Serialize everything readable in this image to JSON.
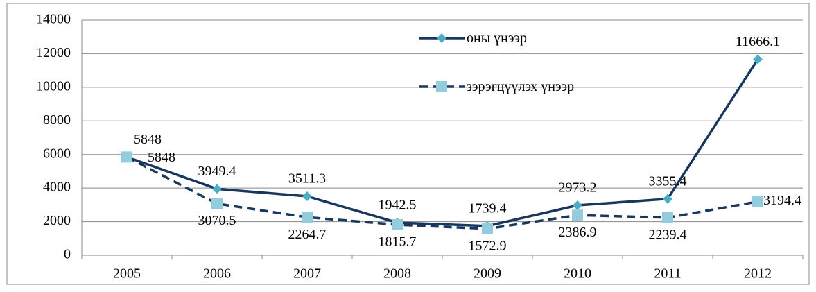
{
  "chart_data": {
    "type": "line",
    "categories": [
      "2005",
      "2006",
      "2007",
      "2008",
      "2009",
      "2010",
      "2011",
      "2012"
    ],
    "series": [
      {
        "name": "оны үнээр",
        "color": "#17375e",
        "marker_color": "#4bacc6",
        "marker": "diamond",
        "dash": false,
        "values": [
          5848,
          3949.4,
          3511.3,
          1942.5,
          1739.4,
          2973.2,
          3355.4,
          11666.1
        ]
      },
      {
        "name": "зэрэгцүүлэх үнээр",
        "color": "#17375e",
        "marker_color": "#93cddd",
        "marker": "square",
        "dash": true,
        "values": [
          5848,
          3070.5,
          2264.7,
          1815.7,
          1572.9,
          2386.9,
          2239.4,
          3194.4
        ]
      }
    ],
    "ylim": [
      0,
      14000
    ],
    "yticks": [
      0,
      2000,
      4000,
      6000,
      8000,
      10000,
      12000,
      14000
    ],
    "grid": true
  }
}
